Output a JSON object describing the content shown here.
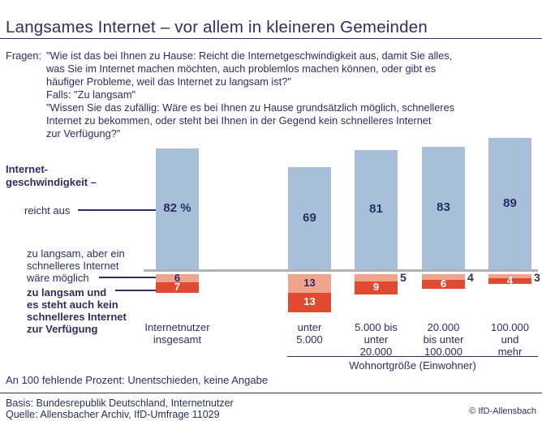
{
  "title": "Langsames Internet – vor allem in kleineren Gemeinden",
  "question": {
    "label": "Fragen:",
    "text": "\"Wie ist das bei Ihnen zu Hause: Reicht die Internetgeschwindigkeit aus, damit Sie alles,\nwas Sie im Internet machen möchten, auch problemlos machen können, oder gibt es\nhäufiger Probleme, weil das Internet zu langsam ist?\"\nFalls: \"Zu langsam\"\n\"Wissen Sie das zufällig: Wäre es bei Ihnen zu Hause grundsätzlich möglich, schnelleres\nInternet zu bekommen, oder steht bei Ihnen in der Gegend kein schnelleres Internet\nzur Verfügung?\""
  },
  "axis_labels": {
    "heading": "Internet-\ngeschwindigkeit –",
    "sufficient": "reicht aus",
    "too_slow_faster_possible": "zu langsam, aber ein\nschnelleres Internet\nwäre möglich",
    "too_slow_no_faster": "zu langsam und\nes steht auch kein\nschnelleres Internet\nzur Verfügung"
  },
  "chart_data": {
    "type": "bar",
    "title": "Langsames Internet – vor allem in kleineren Gemeinden",
    "categories": [
      "Internetnutzer insgesamt",
      "unter 5.000",
      "5.000 bis unter 20.000",
      "20.000 bis unter 100.000",
      "100.000 und mehr"
    ],
    "category_labels": [
      "Internetnutzer\ninsgesamt",
      "unter\n5.000",
      "5.000 bis\nunter\n20.000",
      "20.000\nbis unter\n100.000",
      "100.000\nund\nmehr"
    ],
    "unit": "%",
    "series": [
      {
        "name": "reicht aus",
        "values": [
          82,
          69,
          81,
          83,
          89
        ],
        "labels": [
          "82 %",
          "69",
          "81",
          "83",
          "89"
        ],
        "color": "#a7bfd9",
        "label_color": "#2b2f63",
        "position": "above-baseline"
      },
      {
        "name": "zu langsam, aber ein schnelleres Internet wäre möglich",
        "values": [
          6,
          13,
          5,
          4,
          3
        ],
        "labels": [
          "6",
          "13",
          "5",
          "4",
          "3"
        ],
        "color": "#f0a48e",
        "label_color": "#2b2f63",
        "label_position": [
          "inside",
          "inside",
          "outside",
          "outside",
          "outside"
        ],
        "position": "below-baseline"
      },
      {
        "name": "zu langsam und es steht auch kein schnelleres Internet zur Verfügung",
        "values": [
          7,
          13,
          9,
          6,
          4
        ],
        "labels": [
          "7",
          "13",
          "9",
          "6",
          "4"
        ],
        "color": "#df4a31",
        "label_color": "#ffffff",
        "position": "below-baseline"
      }
    ],
    "group_axis_label": "Wohnortgröße (Einwohner)",
    "note": "An 100 fehlende Prozent: Unentschieden, keine Angabe",
    "grid": false,
    "legend_position": "left-axis-labels"
  },
  "footer": {
    "note": "An 100 fehlende Prozent: Unentschieden, keine Angabe",
    "basis": "Basis: Bundesrepublik Deutschland, Internetnutzer",
    "source": "Quelle: Allensbacher Archiv, IfD-Umfrage 11029",
    "copyright": "© IfD-Allensbach"
  },
  "colors": {
    "navy_text": "#2b2f63",
    "blue_bar": "#a7bfd9",
    "salmon_bar": "#f0a48e",
    "red_bar": "#df4a31",
    "baseline_gray": "#aeb1b5",
    "background": "#ffffff"
  }
}
